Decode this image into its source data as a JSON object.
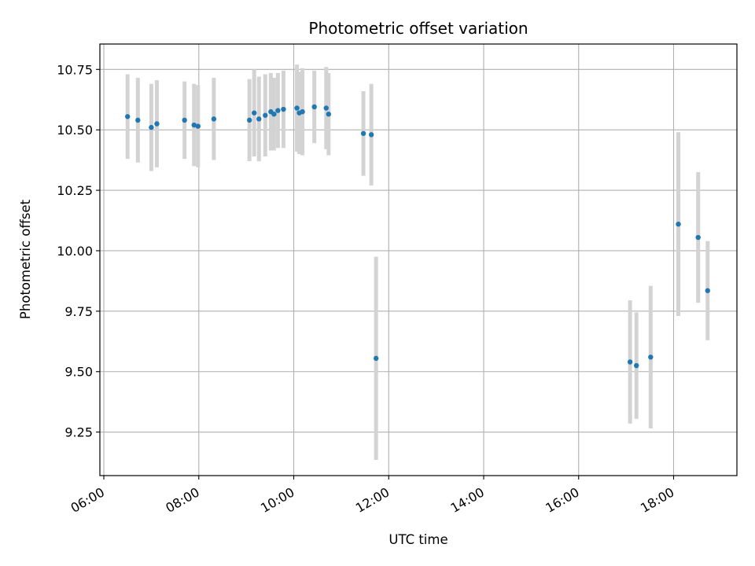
{
  "chart_data": {
    "type": "scatter",
    "title": "Photometric offset variation",
    "xlabel": "UTC time",
    "ylabel": "Photometric offset",
    "x_ticks": [
      "06:00",
      "08:00",
      "10:00",
      "12:00",
      "14:00",
      "16:00",
      "18:00"
    ],
    "y_ticks": [
      "9.25",
      "9.50",
      "9.75",
      "10.00",
      "10.25",
      "10.50",
      "10.75"
    ],
    "xlim": [
      "05:55",
      "19:20"
    ],
    "ylim": [
      9.07,
      10.855
    ],
    "grid": true,
    "colors": {
      "marker": "#1f77b4",
      "errorbar": "#d3d3d3",
      "grid": "#b0b0b0"
    },
    "series": [
      {
        "points": [
          {
            "x": "06:30",
            "y": 10.555,
            "err": 0.175
          },
          {
            "x": "06:43",
            "y": 10.54,
            "err": 0.175
          },
          {
            "x": "07:00",
            "y": 10.51,
            "err": 0.18
          },
          {
            "x": "07:07",
            "y": 10.525,
            "err": 0.18
          },
          {
            "x": "07:42",
            "y": 10.54,
            "err": 0.16
          },
          {
            "x": "07:54",
            "y": 10.52,
            "err": 0.17
          },
          {
            "x": "07:59",
            "y": 10.515,
            "err": 0.17
          },
          {
            "x": "08:19",
            "y": 10.545,
            "err": 0.17
          },
          {
            "x": "09:04",
            "y": 10.54,
            "err": 0.17
          },
          {
            "x": "09:10",
            "y": 10.57,
            "err": 0.18
          },
          {
            "x": "09:16",
            "y": 10.545,
            "err": 0.175
          },
          {
            "x": "09:24",
            "y": 10.56,
            "err": 0.17
          },
          {
            "x": "09:31",
            "y": 10.575,
            "err": 0.16
          },
          {
            "x": "09:35",
            "y": 10.565,
            "err": 0.15
          },
          {
            "x": "09:40",
            "y": 10.58,
            "err": 0.155
          },
          {
            "x": "09:47",
            "y": 10.585,
            "err": 0.16
          },
          {
            "x": "10:04",
            "y": 10.59,
            "err": 0.18
          },
          {
            "x": "10:07",
            "y": 10.57,
            "err": 0.17
          },
          {
            "x": "10:11",
            "y": 10.575,
            "err": 0.18
          },
          {
            "x": "10:26",
            "y": 10.595,
            "err": 0.15
          },
          {
            "x": "10:41",
            "y": 10.59,
            "err": 0.17
          },
          {
            "x": "10:44",
            "y": 10.565,
            "err": 0.17
          },
          {
            "x": "11:28",
            "y": 10.485,
            "err": 0.175
          },
          {
            "x": "11:38",
            "y": 10.48,
            "err": 0.21
          },
          {
            "x": "11:44",
            "y": 9.555,
            "err": 0.42
          },
          {
            "x": "17:05",
            "y": 9.54,
            "err": 0.255
          },
          {
            "x": "17:13",
            "y": 9.525,
            "err": 0.22
          },
          {
            "x": "17:31",
            "y": 9.56,
            "err": 0.295
          },
          {
            "x": "18:06",
            "y": 10.11,
            "err": 0.38
          },
          {
            "x": "18:31",
            "y": 10.055,
            "err": 0.27
          },
          {
            "x": "18:43",
            "y": 9.835,
            "err": 0.205
          }
        ]
      }
    ]
  }
}
